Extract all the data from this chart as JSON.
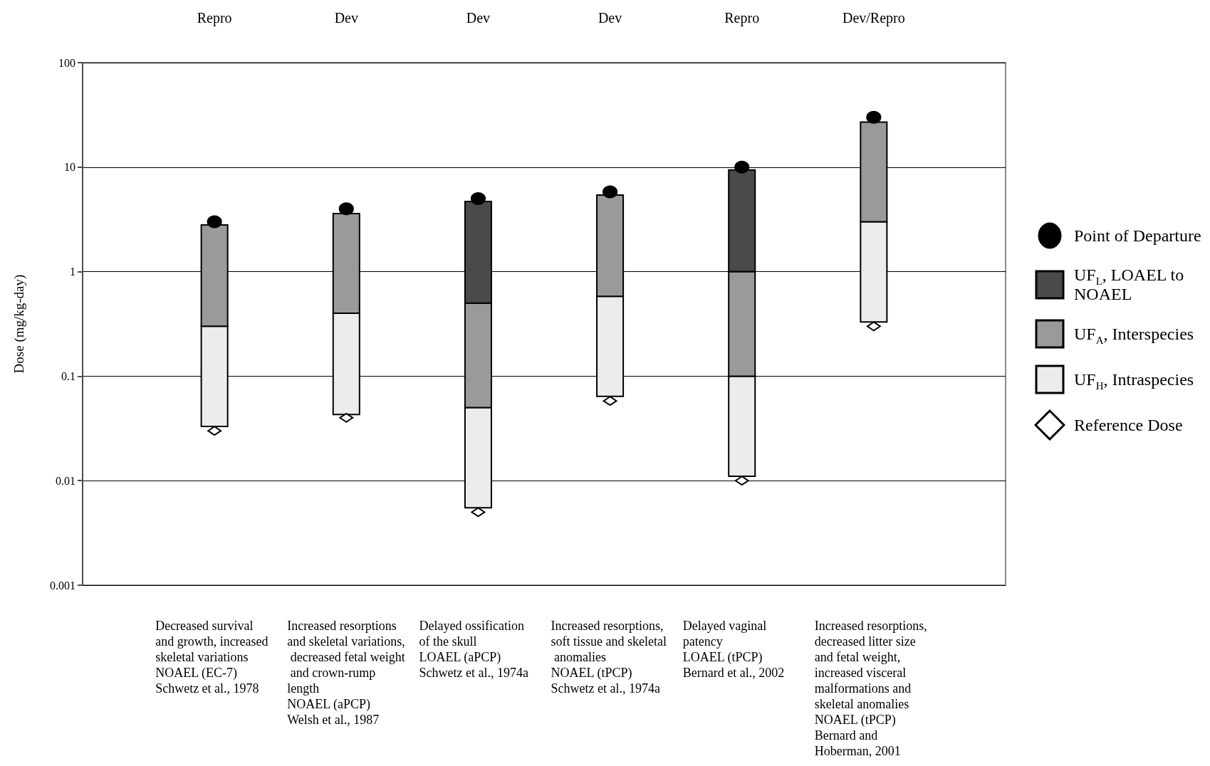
{
  "chart_data": {
    "type": "bar",
    "log": "y",
    "grid": "y",
    "legend": "right",
    "categories": [
      "Decreased survival and growth, increased skeletal variations\nNOAEL (EC-7)\nSchwetz et al., 1978",
      "Increased resorptions and skeletal variations, decreased fetal weight and crown-rump length\nNOAEL (aPCP)\nWelsh et al., 1987",
      "Delayed ossification of the skull\nLOAEL (aPCP)\nSchwetz et al., 1974a",
      "Increased resorptions, soft tissue and skeletal anomalies\nNOAEL (tPCP)\nSchwetz et al., 1974a",
      "Delayed vaginal patency\nLOAEL (tPCP)\nBernard et al., 2002",
      "Increased resorptions, decreased litter size and fetal weight, increased visceral malformations and skeletal anomalies\nNOAEL (tPCP)\nBernard and Hoberman, 2001"
    ],
    "ylabel": "Dose (mg/kg-day)",
    "annotations": [
      "Repro",
      "Dev",
      "Dev",
      "Dev",
      "Repro",
      "Dev/Repro"
    ],
    "series": [
      {
        "name": "Reference Dose",
        "type": "scatter",
        "marker": "diamond",
        "color": "#ffffff",
        "values": [
          0.03,
          0.04,
          0.005,
          0.058,
          0.01,
          0.3
        ]
      },
      {
        "name": "UF$_{H}$, Intraspecies",
        "color": "#ececec",
        "base": [
          0.033,
          0.043,
          0.0055,
          0.064,
          0.011,
          0.33
        ],
        "values": [
          0.267,
          0.357,
          0.0445,
          0.516,
          0.089,
          2.67
        ]
      },
      {
        "name": "UF$_{A}$, Interspecies",
        "color": "#9a9a9a",
        "base": [
          0.3,
          0.4,
          0.05,
          0.58,
          0.1,
          3
        ],
        "values": [
          2.5,
          3.2,
          0.45,
          4.82,
          0.9,
          24
        ]
      },
      {
        "name": "UF$_{L}$, LOAEL to NOAEL",
        "color": "#4a4a4a",
        "base": [
          null,
          null,
          0.5,
          null,
          1,
          null
        ],
        "values": [
          null,
          null,
          4.2,
          null,
          8.4,
          null
        ]
      },
      {
        "name": "Point of Departure",
        "type": "scatter",
        "marker": "circle",
        "color": "#000000",
        "values": [
          3,
          4,
          5,
          5.8,
          10,
          30
        ]
      }
    ],
    "ylim": [
      0.001,
      100
    ],
    "yticks": [
      0.001,
      0.01,
      0.1,
      1,
      10,
      100
    ]
  }
}
